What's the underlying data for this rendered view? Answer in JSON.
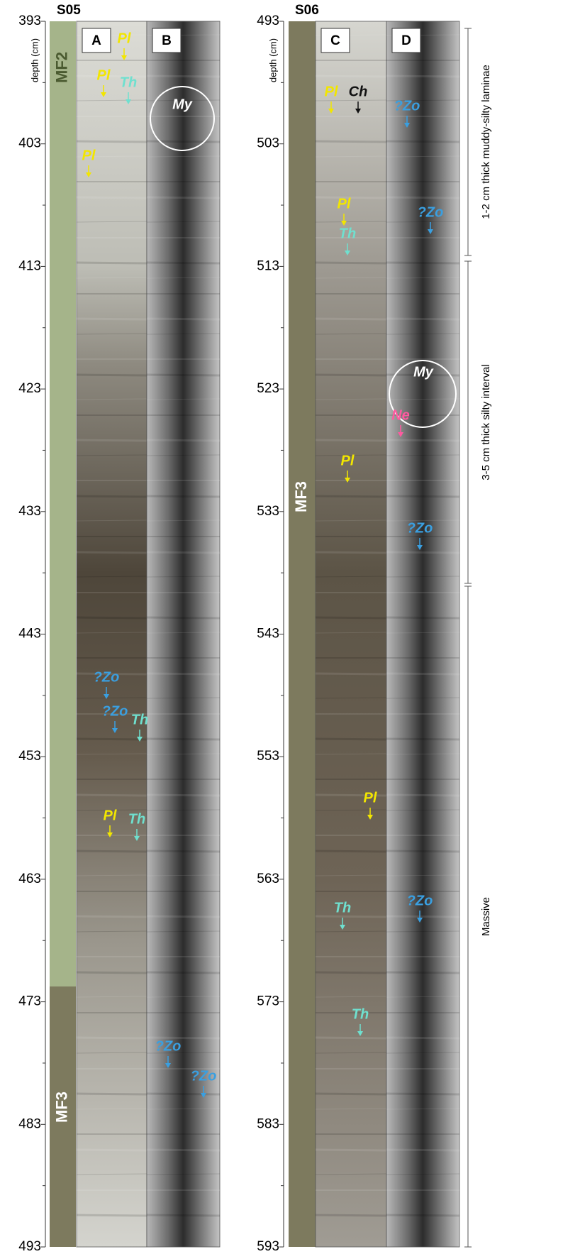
{
  "columns": [
    {
      "title": "S05",
      "depth_label": "depth (cm)",
      "ticks": [
        393,
        403,
        413,
        423,
        433,
        443,
        453,
        463,
        473,
        483,
        493
      ],
      "facies": [
        "MF2",
        "MF3"
      ],
      "panels": [
        "A",
        "B"
      ],
      "annotations": [
        {
          "text": "Pl",
          "color": "#f2e600"
        },
        {
          "text": "Pl",
          "color": "#f2e600"
        },
        {
          "text": "Th",
          "color": "#6fe0cf"
        },
        {
          "text": "My",
          "color": "#ffffff"
        },
        {
          "text": "Pl",
          "color": "#f2e600"
        },
        {
          "text": "?Zo",
          "color": "#3a9fe0"
        },
        {
          "text": "?Zo",
          "color": "#3a9fe0"
        },
        {
          "text": "Th",
          "color": "#6fe0cf"
        },
        {
          "text": "Pl",
          "color": "#f2e600"
        },
        {
          "text": "Th",
          "color": "#6fe0cf"
        },
        {
          "text": "?Zo",
          "color": "#3a9fe0"
        },
        {
          "text": "?Zo",
          "color": "#3a9fe0"
        }
      ]
    },
    {
      "title": "S06",
      "depth_label": "depth (cm)",
      "ticks": [
        493,
        503,
        513,
        523,
        533,
        543,
        553,
        563,
        573,
        583,
        593
      ],
      "facies": [
        "MF3"
      ],
      "panels": [
        "C",
        "D"
      ],
      "annotations": [
        {
          "text": "Pl",
          "color": "#f2e600"
        },
        {
          "text": "Ch",
          "color": "#111111"
        },
        {
          "text": "?Zo",
          "color": "#3a9fe0"
        },
        {
          "text": "Pl",
          "color": "#f2e600"
        },
        {
          "text": "?Zo",
          "color": "#3a9fe0"
        },
        {
          "text": "Th",
          "color": "#6fe0cf"
        },
        {
          "text": "My",
          "color": "#ffffff"
        },
        {
          "text": "Ne",
          "color": "#ff5aa0"
        },
        {
          "text": "Pl",
          "color": "#f2e600"
        },
        {
          "text": "?Zo",
          "color": "#3a9fe0"
        },
        {
          "text": "Pl",
          "color": "#f2e600"
        },
        {
          "text": "?Zo",
          "color": "#3a9fe0"
        },
        {
          "text": "Th",
          "color": "#6fe0cf"
        },
        {
          "text": "Th",
          "color": "#6fe0cf"
        }
      ]
    }
  ],
  "intervals": [
    "1-2 cm thick muddy-silty laminae",
    "3-5 cm thick silty interval",
    "Massive"
  ]
}
